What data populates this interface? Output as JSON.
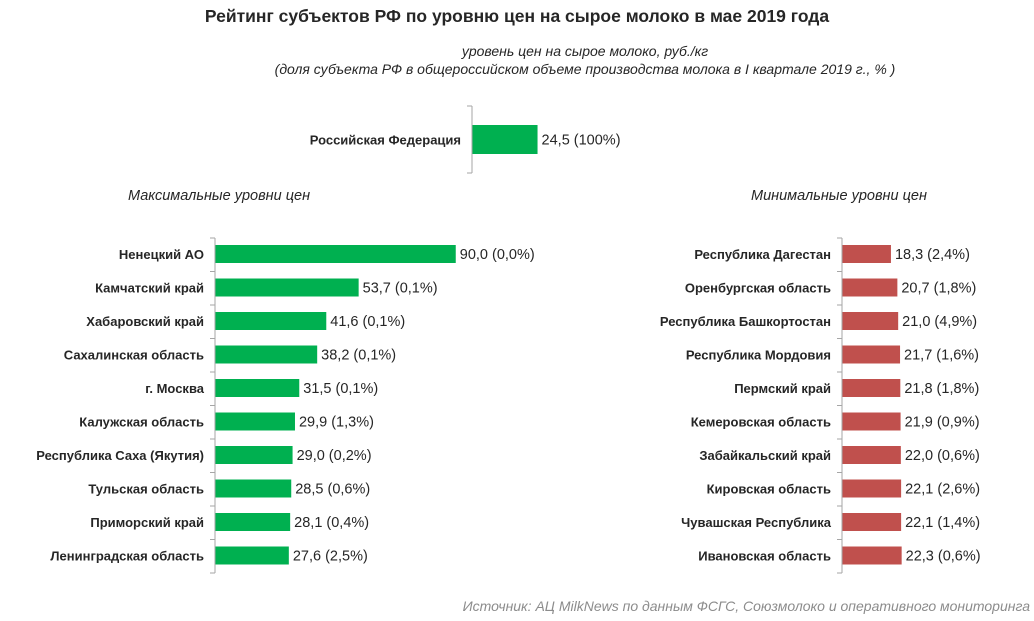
{
  "title": "Рейтинг субъектов РФ по уровню цен на сырое молоко в мае 2019 года",
  "subtitle_line1": "уровень цен на сырое молоко, руб./кг",
  "subtitle_line2": "(доля субъекта РФ в общероссийском объеме производства молока в I квартале 2019 г., % )",
  "source": "Источник:  АЦ MilkNews по данным ФСГС, Союзмолоко и оперативного мониторинга",
  "colors": {
    "green": "#00b050",
    "red": "#c0504d",
    "axis": "#a6a6a6"
  },
  "chart_data": [
    {
      "type": "bar",
      "orientation": "horizontal",
      "title": "",
      "categories": [
        "Российская Федерация"
      ],
      "values": [
        24.5
      ],
      "labels": [
        "24,5 (100%)"
      ]
    },
    {
      "type": "bar",
      "orientation": "horizontal",
      "title": "Максимальные уровни цен",
      "categories": [
        "Ненецкий АО",
        "Камчатский край",
        "Хабаровский край",
        "Сахалинская область",
        "г. Москва",
        "Калужская область",
        "Республика Саха (Якутия)",
        "Тульская область",
        "Приморский край",
        "Ленинградская область"
      ],
      "values": [
        90.0,
        53.7,
        41.6,
        38.2,
        31.5,
        29.9,
        29.0,
        28.5,
        28.1,
        27.6
      ],
      "labels": [
        "90,0 (0,0%)",
        "53,7 (0,1%)",
        "41,6 (0,1%)",
        "38,2 (0,1%)",
        "31,5 (0,1%)",
        "29,9 (1,3%)",
        "29,0 (0,2%)",
        "28,5 (0,6%)",
        "28,1 (0,4%)",
        "27,6 (2,5%)"
      ]
    },
    {
      "type": "bar",
      "orientation": "horizontal",
      "title": "Минимальные уровни цен",
      "categories": [
        "Республика Дагестан",
        "Оренбургская область",
        "Республика Башкортостан",
        "Республика Мордовия",
        "Пермский край",
        "Кемеровская область",
        "Забайкальский край",
        "Кировская область",
        "Чувашская Республика",
        "Ивановская область"
      ],
      "values": [
        18.3,
        20.7,
        21.0,
        21.7,
        21.8,
        21.9,
        22.0,
        22.1,
        22.1,
        22.3
      ],
      "labels": [
        "18,3 (2,4%)",
        "20,7 (1,8%)",
        "21,0 (4,9%)",
        "21,7 (1,6%)",
        "21,8 (1,8%)",
        "21,9 (0,9%)",
        "22,0 (0,6%)",
        "22,1 (2,6%)",
        "22,1 (1,4%)",
        "22,3 (0,6%)"
      ]
    }
  ]
}
